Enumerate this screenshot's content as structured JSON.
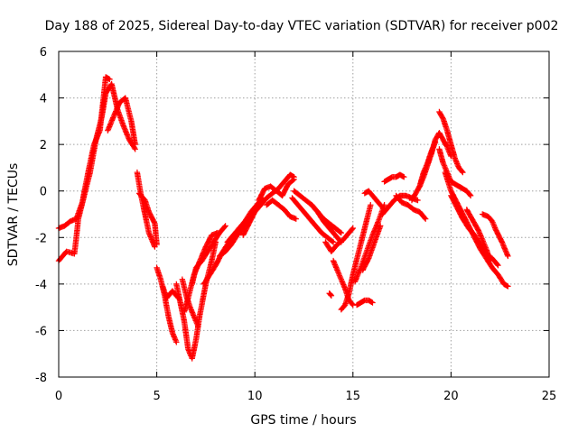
{
  "chart_data": {
    "type": "scatter",
    "title": "Day 188 of 2025, Sidereal Day-to-day VTEC variation (SDTVAR) for receiver p002",
    "xlabel": "GPS time / hours",
    "ylabel": "SDTVAR / TECUs",
    "xlim": [
      0,
      25
    ],
    "ylim": [
      -8,
      6
    ],
    "xticks": [
      0,
      5,
      10,
      15,
      20,
      25
    ],
    "yticks": [
      -8,
      -6,
      -4,
      -2,
      0,
      2,
      4,
      6
    ],
    "xtick_labels": [
      "0",
      "5",
      "10",
      "15",
      "20",
      "25"
    ],
    "ytick_labels": [
      "-8",
      "-6",
      "-4",
      "-2",
      "0",
      "2",
      "4",
      "6"
    ],
    "grid": true,
    "marker": "plus",
    "series": [
      {
        "name": "SDTVAR",
        "color": "#ff0000",
        "tracks": [
          {
            "x": [
              0.0,
              0.3,
              0.6,
              0.9,
              1.2,
              1.5,
              1.8,
              2.1,
              2.4,
              2.6
            ],
            "y": [
              -1.6,
              -1.5,
              -1.3,
              -1.2,
              -0.5,
              0.8,
              2.0,
              2.6,
              4.9,
              4.8
            ]
          },
          {
            "x": [
              0.0,
              0.4,
              0.8,
              0.9,
              1.0,
              1.3,
              1.6,
              1.9,
              2.2,
              2.4,
              2.7,
              3.0,
              3.3,
              3.6,
              3.9
            ],
            "y": [
              -3.0,
              -2.6,
              -2.7,
              -2.0,
              -1.2,
              -0.2,
              0.8,
              2.2,
              3.2,
              4.2,
              4.6,
              3.5,
              2.8,
              2.2,
              1.8
            ]
          },
          {
            "x": [
              2.5,
              2.8,
              3.1,
              3.4,
              3.7,
              3.9
            ],
            "y": [
              2.6,
              3.2,
              3.8,
              4.0,
              3.0,
              2.0
            ]
          },
          {
            "x": [
              4.0,
              4.2,
              4.4,
              4.6,
              4.8,
              4.9
            ],
            "y": [
              0.8,
              -0.2,
              -1.0,
              -1.8,
              -2.2,
              -2.4
            ]
          },
          {
            "x": [
              4.1,
              4.4,
              4.6,
              4.9,
              5.0
            ],
            "y": [
              -0.1,
              -0.4,
              -0.9,
              -1.4,
              -2.3
            ]
          },
          {
            "x": [
              5.0,
              5.2,
              5.4,
              5.6,
              5.8,
              6.0
            ],
            "y": [
              -3.3,
              -3.8,
              -4.5,
              -5.4,
              -6.1,
              -6.5
            ]
          },
          {
            "x": [
              5.3,
              5.5,
              5.8,
              6.1
            ],
            "y": [
              -4.1,
              -4.6,
              -4.3,
              -4.6
            ]
          },
          {
            "x": [
              6.0,
              6.2,
              6.4,
              6.6,
              6.8,
              7.0,
              7.2,
              7.5,
              7.8,
              8.0
            ],
            "y": [
              -4.0,
              -4.8,
              -5.6,
              -6.8,
              -7.2,
              -6.4,
              -5.3,
              -4.0,
              -3.0,
              -2.2
            ]
          },
          {
            "x": [
              6.3,
              6.5,
              6.7,
              6.9,
              7.1
            ],
            "y": [
              -3.8,
              -4.5,
              -5.0,
              -5.4,
              -5.8
            ]
          },
          {
            "x": [
              6.4,
              6.6,
              6.9,
              7.2,
              7.5,
              7.8,
              8.1
            ],
            "y": [
              -5.2,
              -4.6,
              -3.6,
              -3.0,
              -2.4,
              -1.9,
              -1.8
            ]
          },
          {
            "x": [
              6.8,
              7.0,
              7.3,
              7.6,
              7.9,
              8.2,
              8.5
            ],
            "y": [
              -4.0,
              -3.3,
              -3.0,
              -2.6,
              -2.2,
              -1.8,
              -1.5
            ]
          },
          {
            "x": [
              7.4,
              7.7,
              8.0,
              8.3,
              8.6,
              8.9,
              9.2
            ],
            "y": [
              -4.0,
              -3.6,
              -3.2,
              -2.7,
              -2.3,
              -2.0,
              -1.6
            ]
          },
          {
            "x": [
              8.2,
              8.5,
              8.8,
              9.1,
              9.4,
              9.7,
              10.0
            ],
            "y": [
              -2.8,
              -2.6,
              -2.3,
              -1.9,
              -1.6,
              -1.2,
              -0.8
            ]
          },
          {
            "x": [
              8.6,
              8.9,
              9.2,
              9.5,
              9.8,
              10.1,
              10.4
            ],
            "y": [
              -2.2,
              -1.9,
              -1.6,
              -1.3,
              -0.9,
              -0.6,
              -0.3
            ]
          },
          {
            "x": [
              9.4,
              9.7,
              10.0,
              10.3,
              10.6,
              10.9,
              11.2,
              11.5,
              11.8,
              12.0
            ],
            "y": [
              -1.9,
              -1.4,
              -0.9,
              -0.6,
              -0.3,
              -0.1,
              0.1,
              0.4,
              0.7,
              0.6
            ]
          },
          {
            "x": [
              10.2,
              10.5,
              10.8,
              11.1,
              11.4,
              11.7,
              12.0
            ],
            "y": [
              -0.4,
              0.1,
              0.2,
              0.0,
              -0.2,
              0.3,
              0.5
            ]
          },
          {
            "x": [
              10.6,
              10.9,
              11.2,
              11.5,
              11.8,
              12.1
            ],
            "y": [
              -0.6,
              -0.4,
              -0.6,
              -0.8,
              -1.1,
              -1.2
            ]
          },
          {
            "x": [
              11.9,
              12.2,
              12.5,
              12.8,
              13.1,
              13.4,
              13.7,
              14.0
            ],
            "y": [
              -0.3,
              -0.6,
              -0.9,
              -1.2,
              -1.5,
              -1.8,
              -2.0,
              -2.2
            ]
          },
          {
            "x": [
              12.0,
              12.3,
              12.6,
              12.9,
              13.2,
              13.5,
              13.8,
              14.1,
              14.4
            ],
            "y": [
              0.0,
              -0.2,
              -0.4,
              -0.6,
              -0.9,
              -1.2,
              -1.4,
              -1.6,
              -1.8
            ]
          },
          {
            "x": [
              12.9,
              13.2,
              13.5,
              13.8,
              14.1,
              14.4
            ],
            "y": [
              -0.6,
              -0.9,
              -1.3,
              -1.6,
              -1.9,
              -2.2
            ]
          },
          {
            "x": [
              13.6,
              13.9,
              14.2,
              14.5,
              14.8,
              15.0
            ],
            "y": [
              -2.2,
              -2.6,
              -2.3,
              -2.1,
              -1.8,
              -1.6
            ]
          },
          {
            "x": [
              13.8,
              13.9
            ],
            "y": [
              -4.4,
              -4.5
            ]
          },
          {
            "x": [
              14.0,
              14.2,
              14.4,
              14.6,
              14.8,
              15.0
            ],
            "y": [
              -3.0,
              -3.4,
              -3.8,
              -4.2,
              -4.7,
              -4.9
            ]
          },
          {
            "x": [
              14.4,
              14.6,
              14.8,
              15.0,
              15.3,
              15.6,
              15.9
            ],
            "y": [
              -5.1,
              -4.9,
              -4.4,
              -3.6,
              -2.6,
              -1.6,
              -0.6
            ]
          },
          {
            "x": [
              15.1,
              15.4,
              15.7,
              16.0,
              16.3,
              16.6
            ],
            "y": [
              -3.9,
              -3.3,
              -2.6,
              -1.9,
              -1.3,
              -0.6
            ]
          },
          {
            "x": [
              15.2,
              15.4,
              15.6,
              15.8,
              16.0
            ],
            "y": [
              -4.9,
              -4.8,
              -4.7,
              -4.7,
              -4.8
            ]
          },
          {
            "x": [
              15.5,
              15.8,
              16.1,
              16.4
            ],
            "y": [
              -3.4,
              -2.9,
              -2.2,
              -1.5
            ]
          },
          {
            "x": [
              15.6,
              15.8,
              16.0,
              16.2,
              16.4,
              16.6
            ],
            "y": [
              -0.1,
              0.0,
              -0.2,
              -0.4,
              -0.6,
              -0.8
            ]
          },
          {
            "x": [
              16.5,
              16.8,
              17.1,
              17.4,
              17.7,
              18.0,
              18.3
            ],
            "y": [
              -1.0,
              -0.7,
              -0.4,
              -0.2,
              -0.2,
              -0.3,
              -0.4
            ]
          },
          {
            "x": [
              16.6,
              16.8,
              17.0,
              17.2,
              17.4,
              17.6
            ],
            "y": [
              0.4,
              0.5,
              0.6,
              0.6,
              0.7,
              0.6
            ]
          },
          {
            "x": [
              17.2,
              17.5,
              17.8,
              18.1,
              18.4,
              18.7
            ],
            "y": [
              -0.2,
              -0.5,
              -0.6,
              -0.8,
              -0.9,
              -1.2
            ]
          },
          {
            "x": [
              18.0,
              18.2,
              18.4,
              18.6,
              18.8,
              19.0,
              19.2
            ],
            "y": [
              -0.4,
              -0.1,
              0.2,
              0.8,
              1.2,
              1.7,
              2.1
            ]
          },
          {
            "x": [
              18.4,
              18.6,
              18.8,
              19.0,
              19.2,
              19.4,
              19.6,
              19.8,
              20.0
            ],
            "y": [
              0.2,
              0.6,
              1.1,
              1.6,
              2.2,
              2.5,
              2.2,
              1.9,
              1.5
            ]
          },
          {
            "x": [
              19.4,
              19.6,
              19.8,
              20.0,
              20.2,
              20.4,
              20.6
            ],
            "y": [
              3.4,
              3.1,
              2.6,
              2.0,
              1.4,
              1.0,
              0.8
            ]
          },
          {
            "x": [
              19.4,
              19.6,
              19.8,
              20.0,
              20.2,
              20.4,
              20.6,
              20.8,
              21.0
            ],
            "y": [
              1.8,
              1.2,
              0.8,
              0.4,
              0.3,
              0.2,
              0.1,
              0.0,
              -0.2
            ]
          },
          {
            "x": [
              19.7,
              20.0,
              20.3,
              20.6,
              20.9,
              21.2,
              21.5,
              21.8,
              22.1,
              22.4,
              22.7,
              22.9
            ],
            "y": [
              0.8,
              0.0,
              -0.5,
              -1.0,
              -1.5,
              -2.0,
              -2.5,
              -2.9,
              -3.3,
              -3.6,
              -4.0,
              -4.1
            ]
          },
          {
            "x": [
              20.0,
              20.3,
              20.6,
              20.9,
              21.2,
              21.5,
              21.8,
              22.1,
              22.4
            ],
            "y": [
              -0.2,
              -0.7,
              -1.2,
              -1.6,
              -1.9,
              -2.3,
              -2.7,
              -2.9,
              -3.2
            ]
          },
          {
            "x": [
              20.8,
              21.0,
              21.2,
              21.4,
              21.6,
              21.8,
              22.0
            ],
            "y": [
              -0.8,
              -1.1,
              -1.4,
              -1.7,
              -2.1,
              -2.5,
              -3.0
            ]
          },
          {
            "x": [
              21.6,
              21.9,
              22.1,
              22.3,
              22.6,
              22.9
            ],
            "y": [
              -1.0,
              -1.1,
              -1.3,
              -1.7,
              -2.2,
              -2.8
            ]
          }
        ]
      }
    ]
  }
}
